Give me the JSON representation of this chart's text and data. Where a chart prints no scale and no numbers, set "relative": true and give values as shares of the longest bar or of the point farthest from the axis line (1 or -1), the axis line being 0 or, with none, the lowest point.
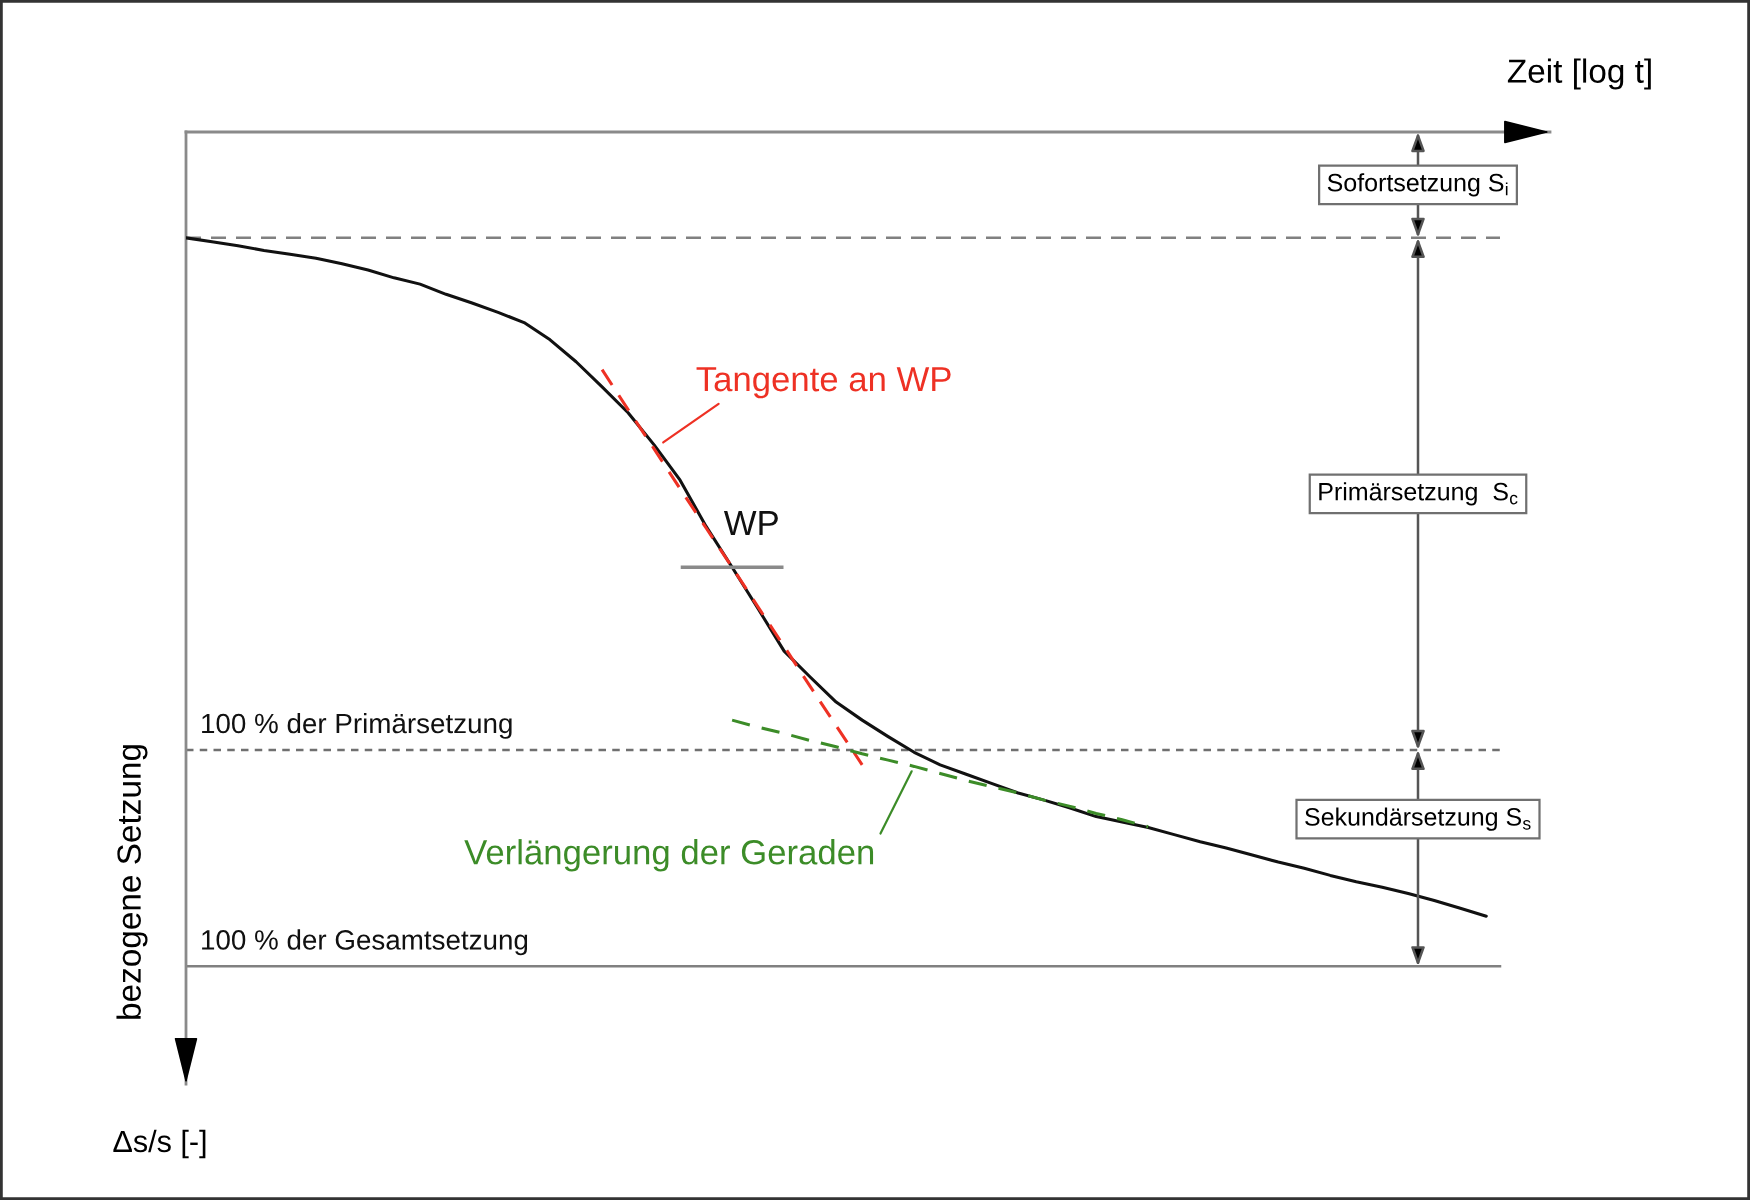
{
  "chart_data": {
    "type": "line",
    "relative": true,
    "xlabel": "Zeit [log t]",
    "ylabel": "bezogene Setzung",
    "categories": [
      null,
      null,
      null,
      null,
      null,
      null,
      null,
      null,
      null,
      null,
      null,
      null,
      null,
      null,
      null,
      null,
      null,
      null,
      null,
      null,
      null,
      null,
      null,
      null,
      null,
      null,
      null,
      null,
      null,
      null,
      null,
      null,
      null,
      null,
      null,
      null,
      null,
      null,
      null,
      null,
      null,
      null,
      null,
      null,
      null,
      null,
      null,
      null,
      null,
      null,
      null
    ],
    "series": [
      {
        "color": "#111111",
        "line_style": "solid",
        "values": [
          -0.135,
          -0.14,
          -0.145,
          -0.151,
          -0.156,
          -0.161,
          -0.168,
          -0.176,
          -0.186,
          -0.194,
          -0.207,
          -0.218,
          -0.23,
          -0.243,
          -0.265,
          -0.293,
          -0.325,
          -0.358,
          -0.399,
          -0.444,
          -0.503,
          -0.555,
          -0.608,
          -0.662,
          -0.695,
          -0.727,
          -0.75,
          -0.771,
          -0.791,
          -0.807,
          -0.819,
          -0.831,
          -0.843,
          -0.852,
          -0.862,
          -0.873,
          -0.88,
          -0.887,
          -0.896,
          -0.905,
          -0.913,
          -0.922,
          -0.931,
          -0.939,
          -0.948,
          -0.956,
          -0.963,
          -0.971,
          -0.98,
          -0.99,
          -1.0
        ]
      },
      {
        "name": "Tangente an WP",
        "color": "#ee3124",
        "line_style": "dashed",
        "values": [
          null,
          null,
          null,
          null,
          null,
          null,
          null,
          null,
          null,
          null,
          null,
          null,
          null,
          null,
          null,
          null,
          -0.303,
          -0.354,
          -0.404,
          -0.455,
          -0.505,
          -0.555,
          -0.606,
          -0.656,
          -0.707,
          -0.757,
          -0.807,
          null,
          null,
          null,
          null,
          null,
          null,
          null,
          null,
          null,
          null,
          null,
          null,
          null,
          null,
          null,
          null,
          null,
          null,
          null,
          null,
          null,
          null,
          null,
          null
        ]
      },
      {
        "name": "Verlängerung der Geraden",
        "color": "#3c8c28",
        "line_style": "dashed",
        "values": [
          null,
          null,
          null,
          null,
          null,
          null,
          null,
          null,
          null,
          null,
          null,
          null,
          null,
          null,
          null,
          null,
          null,
          null,
          null,
          null,
          null,
          -0.75,
          -0.759,
          -0.767,
          -0.776,
          -0.784,
          -0.793,
          -0.801,
          -0.809,
          -0.818,
          -0.827,
          -0.835,
          -0.843,
          -0.852,
          -0.86,
          -0.869,
          -0.877,
          -0.886,
          null,
          null,
          null,
          null,
          null,
          null,
          null,
          null,
          null,
          null,
          null,
          null,
          null
        ]
      }
    ],
    "ref_lines": [
      {
        "axis": "y",
        "value": -0.135,
        "color": "#808080",
        "line_style": "dashed"
      },
      {
        "axis": "y",
        "value": -0.788,
        "label": "100 % der Primärsetzung",
        "color": "#707070",
        "line_style": "dotted"
      },
      {
        "axis": "y",
        "value": -1.064,
        "label": "100 % der Gesamtsetzung",
        "color": "#808080",
        "line_style": "solid"
      }
    ],
    "annotations": [
      "Sofortsetzung S$_{i}$",
      "Primärsetzung  S$_{c}$",
      "Sekundärsetzung S$_{s}$",
      "WP",
      "Δs/s [-]"
    ]
  }
}
